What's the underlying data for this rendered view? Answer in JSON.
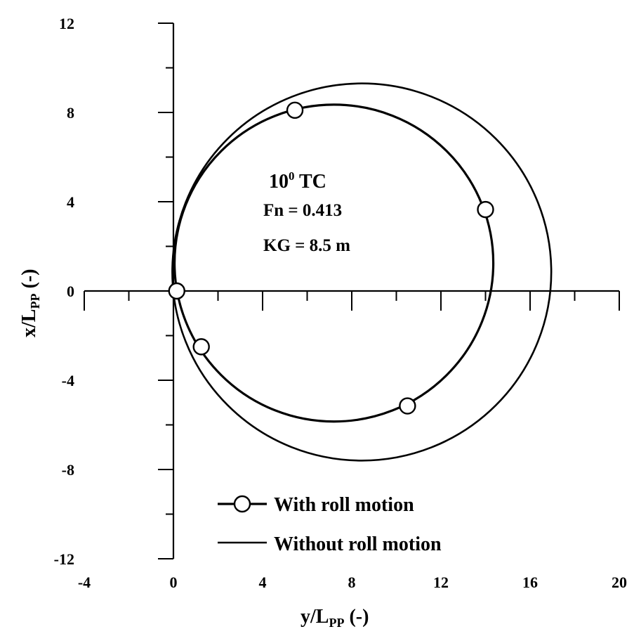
{
  "chart_data": {
    "type": "line",
    "xlabel": {
      "main": "y/L",
      "sub": "PP",
      "suffix": " (-)"
    },
    "ylabel": {
      "main": "x/L",
      "sub": "PP",
      "suffix": " (-)"
    },
    "xlim": [
      -4,
      20
    ],
    "ylim": [
      -12,
      12
    ],
    "xticks": [
      -4,
      0,
      4,
      8,
      12,
      16,
      20
    ],
    "yticks": [
      -12,
      -8,
      -4,
      0,
      4,
      8,
      12
    ],
    "grid": false,
    "legend_position": "bottom-left",
    "annotation": {
      "title_main": "10",
      "title_sup": "0",
      "title_rest": " TC",
      "line1": "Fn = 0.413",
      "line2": "KG = 8.5 m"
    },
    "series": [
      {
        "name": "With roll motion",
        "marker": "circle",
        "stroke_width": 3.2,
        "circle": {
          "cx": 7.2,
          "cy": 1.25,
          "rx": 7.15,
          "ry": 7.1
        },
        "markers": [
          [
            0.15,
            0.0
          ],
          [
            1.25,
            -2.5
          ],
          [
            5.45,
            8.1
          ],
          [
            14.0,
            3.65
          ],
          [
            10.5,
            -5.15
          ]
        ]
      },
      {
        "name": "Without roll motion",
        "marker": "none",
        "stroke_width": 2.6,
        "circle": {
          "cx": 8.45,
          "cy": 0.85,
          "rx": 8.5,
          "ry": 8.45
        },
        "markers": []
      }
    ]
  }
}
